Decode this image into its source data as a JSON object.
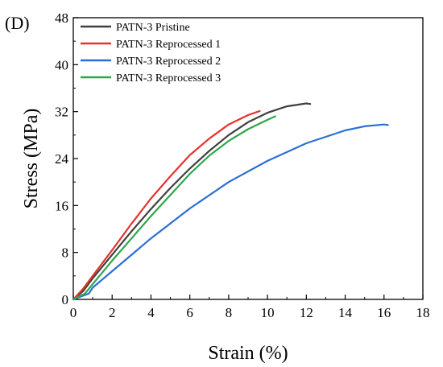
{
  "chart_data": {
    "type": "line",
    "panel_label": "(D)",
    "xlabel": "Strain (%)",
    "ylabel": "Stress (MPa)",
    "xlim": [
      0,
      18
    ],
    "ylim": [
      0,
      48
    ],
    "xticks": [
      0,
      2,
      4,
      6,
      8,
      10,
      12,
      14,
      16,
      18
    ],
    "yticks": [
      0,
      8,
      16,
      24,
      32,
      40,
      48
    ],
    "grid": false,
    "legend_position": "top-left",
    "series": [
      {
        "name": "PATN-3 Pristine",
        "color": "#404040",
        "points": [
          [
            0,
            0
          ],
          [
            0.5,
            1.4
          ],
          [
            1,
            3.6
          ],
          [
            2,
            7.6
          ],
          [
            3,
            11.6
          ],
          [
            4,
            15.4
          ],
          [
            5,
            19.0
          ],
          [
            6,
            22.3
          ],
          [
            7,
            25.3
          ],
          [
            8,
            28.0
          ],
          [
            9,
            30.2
          ],
          [
            10,
            31.8
          ],
          [
            11,
            32.9
          ],
          [
            12,
            33.4
          ],
          [
            12.2,
            33.3
          ]
        ]
      },
      {
        "name": "PATN-3 Reprocessed 1",
        "color": "#e8322f",
        "points": [
          [
            0,
            0
          ],
          [
            0.5,
            1.8
          ],
          [
            1,
            4.0
          ],
          [
            2,
            8.4
          ],
          [
            3,
            12.9
          ],
          [
            4,
            17.2
          ],
          [
            5,
            21.0
          ],
          [
            6,
            24.6
          ],
          [
            7,
            27.4
          ],
          [
            8,
            29.8
          ],
          [
            9,
            31.4
          ],
          [
            9.6,
            32.1
          ]
        ]
      },
      {
        "name": "PATN-3 Reprocessed 2",
        "color": "#2b6fd6",
        "points": [
          [
            0,
            0
          ],
          [
            0.8,
            1.0
          ],
          [
            1,
            2.0
          ],
          [
            2,
            4.8
          ],
          [
            3,
            7.6
          ],
          [
            4,
            10.4
          ],
          [
            6,
            15.5
          ],
          [
            8,
            20.0
          ],
          [
            10,
            23.6
          ],
          [
            12,
            26.6
          ],
          [
            14,
            28.8
          ],
          [
            15,
            29.5
          ],
          [
            16,
            29.8
          ],
          [
            16.2,
            29.7
          ]
        ]
      },
      {
        "name": "PATN-3 Reprocessed 3",
        "color": "#2ea64a",
        "points": [
          [
            0,
            0
          ],
          [
            0.6,
            1.0
          ],
          [
            1,
            2.6
          ],
          [
            2,
            6.6
          ],
          [
            3,
            10.4
          ],
          [
            4,
            14.2
          ],
          [
            5,
            17.8
          ],
          [
            6,
            21.4
          ],
          [
            7,
            24.5
          ],
          [
            8,
            27.0
          ],
          [
            9,
            29.0
          ],
          [
            10,
            30.6
          ],
          [
            10.4,
            31.2
          ]
        ]
      }
    ]
  }
}
